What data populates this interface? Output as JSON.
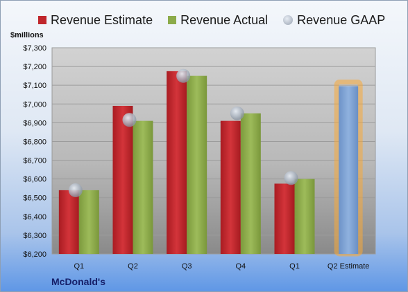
{
  "legend": {
    "estimate": "Revenue Estimate",
    "actual": "Revenue Actual",
    "gaap": "Revenue GAAP"
  },
  "unit_label": "$millions",
  "company_label": "McDonald's",
  "colors": {
    "estimate": "#c0262c",
    "actual": "#8cab4a",
    "gaap": "#aab3bf",
    "q2_estimate_fill": "#7aa0d2",
    "q2_estimate_glow": "#f7a93b"
  },
  "chart_data": {
    "type": "bar",
    "title": "",
    "xlabel": "",
    "ylabel": "$millions",
    "ylim": [
      6200,
      7300
    ],
    "y_ticks": [
      "$6,200",
      "$6,300",
      "$6,400",
      "$6,500",
      "$6,600",
      "$6,700",
      "$6,800",
      "$6,900",
      "$7,000",
      "$7,100",
      "$7,200",
      "$7,300"
    ],
    "y_tick_values": [
      6200,
      6300,
      6400,
      6500,
      6600,
      6700,
      6800,
      6900,
      7000,
      7100,
      7200,
      7300
    ],
    "categories": [
      "Q1",
      "Q2",
      "Q3",
      "Q4",
      "Q1",
      "Q2 Estimate"
    ],
    "grid": true,
    "legend_position": "top",
    "series": [
      {
        "name": "Revenue Estimate",
        "values": [
          6540,
          6990,
          7175,
          6910,
          6575,
          null
        ]
      },
      {
        "name": "Revenue Actual",
        "values": [
          6540,
          6910,
          7150,
          6950,
          6600,
          null
        ]
      },
      {
        "name": "Revenue GAAP",
        "values": [
          6540,
          6915,
          7150,
          6950,
          6605,
          null
        ]
      }
    ],
    "q2_estimate_value": 7095
  }
}
